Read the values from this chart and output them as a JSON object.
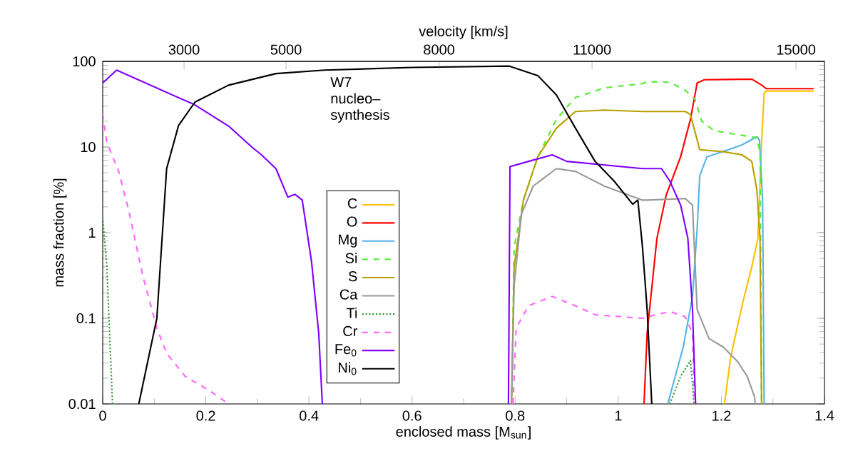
{
  "chart_data": {
    "type": "line",
    "xlabel": "enclosed mass [M$_{sun}$]",
    "ylabel": "mass fraction [%]",
    "x2label": "velocity [km/s]",
    "annotations": [
      "W7",
      "nucleo–",
      "synthesis"
    ],
    "xlim": [
      0,
      1.4
    ],
    "xticks": [
      0,
      0.2,
      0.4,
      0.6,
      0.8,
      1,
      1.2,
      1.4
    ],
    "x2lim": [
      1405,
      15558
    ],
    "x2ticks": [
      3000,
      5000,
      8000,
      11000,
      15000
    ],
    "ylim": [
      0.01,
      100
    ],
    "yticks": [
      0.01,
      0.1,
      1,
      10,
      100
    ],
    "log": "y",
    "grid": false,
    "legend": "center",
    "marker": "none",
    "line_style": "solid",
    "series": [
      {
        "name": "C",
        "color": "#ffc000",
        "x": [
          1.206,
          1.218,
          1.24,
          1.259,
          1.271,
          1.278,
          1.283,
          1.287,
          1.379
        ],
        "values": [
          0.01,
          0.035,
          0.14,
          0.4,
          0.86,
          11.3,
          43,
          45,
          45
        ]
      },
      {
        "name": "O",
        "color": "#ff0000",
        "x": [
          1.05,
          1.056,
          1.075,
          1.093,
          1.121,
          1.14,
          1.153,
          1.167,
          1.259,
          1.278,
          1.287,
          1.379
        ],
        "values": [
          0.01,
          0.067,
          0.86,
          2.75,
          7.7,
          21,
          56,
          61,
          62,
          53,
          48,
          48
        ]
      },
      {
        "name": "Mg",
        "color": "#56b4e9",
        "x": [
          1.096,
          1.126,
          1.144,
          1.153,
          1.158,
          1.172,
          1.204,
          1.24,
          1.269,
          1.274,
          1.28,
          1.283
        ],
        "values": [
          0.01,
          0.046,
          0.18,
          1.1,
          4.6,
          7.7,
          8.9,
          10.6,
          13.2,
          12,
          2.4,
          0.01
        ]
      },
      {
        "name": "Si",
        "color": "#55ee33",
        "line_style": "dashed",
        "x": [
          0.793,
          0.798,
          0.816,
          0.844,
          0.88,
          0.917,
          0.973,
          1.047,
          1.056,
          1.1,
          1.13,
          1.149,
          1.162,
          1.186,
          1.24,
          1.269,
          1.275,
          1.278
        ],
        "values": [
          0.01,
          0.67,
          2.4,
          7.7,
          21,
          38,
          49,
          55,
          58,
          57,
          46,
          36,
          20,
          15.5,
          13.7,
          12.8,
          8.7,
          0.01
        ]
      },
      {
        "name": "S",
        "color": "#b8a000",
        "x": [
          0.793,
          0.798,
          0.816,
          0.844,
          0.88,
          0.917,
          0.973,
          1.047,
          1.13,
          1.14,
          1.158,
          1.204,
          1.24,
          1.259,
          1.269,
          1.275,
          1.278
        ],
        "values": [
          0.01,
          0.4,
          2.4,
          7.7,
          16.6,
          26,
          27,
          26,
          26,
          24,
          9.3,
          8.8,
          8.1,
          6.8,
          3.1,
          0.86,
          0.01
        ]
      },
      {
        "name": "Ca",
        "color": "#999999",
        "x": [
          0.793,
          0.798,
          0.812,
          0.835,
          0.88,
          0.917,
          0.973,
          1.047,
          1.056,
          1.13,
          1.144,
          1.153,
          1.176,
          1.204,
          1.232,
          1.25,
          1.264,
          1.266
        ],
        "values": [
          0.01,
          0.24,
          1.64,
          3.5,
          5.6,
          5.2,
          3.5,
          2.4,
          2.4,
          2.5,
          2.1,
          0.127,
          0.058,
          0.046,
          0.031,
          0.021,
          0.0123,
          0.01
        ]
      },
      {
        "name": "Ti",
        "color": "#339933",
        "line_style": "dotted",
        "x": [
          0,
          0.008,
          0.019,
          0.6,
          1.1,
          1.121,
          1.14,
          1.144,
          1.147
        ],
        "values": [
          1.5,
          0.4,
          0.01,
          null,
          0.01,
          0.021,
          0.032,
          0.017,
          0.01
        ]
      },
      {
        "name": "Cr",
        "color": "#ff66ff",
        "line_style": "dashed",
        "x": [
          0,
          0.008,
          0.031,
          0.05,
          0.078,
          0.105,
          0.124,
          0.16,
          0.207,
          0.244,
          0.5,
          0.796,
          0.802,
          0.826,
          0.872,
          0.917,
          0.955,
          1.047,
          1.056,
          1.1,
          1.13,
          1.144,
          1.148
        ],
        "values": [
          24.4,
          11.3,
          5.2,
          1.87,
          0.31,
          0.077,
          0.039,
          0.021,
          0.0143,
          0.01,
          null,
          0.01,
          0.077,
          0.14,
          0.18,
          0.14,
          0.11,
          0.1,
          0.104,
          0.12,
          0.104,
          0.067,
          0.01
        ]
      },
      {
        "name": "Fe$_{0}$",
        "color": "#7f00ff",
        "x": [
          0,
          0.027,
          0.179,
          0.244,
          0.29,
          0.308,
          0.336,
          0.359,
          0.373,
          0.387,
          0.405,
          0.419,
          0.426,
          0.6,
          0.787,
          0.79,
          0.826,
          0.872,
          0.9,
          1.047,
          1.084,
          1.1,
          1.121,
          1.135,
          1.144,
          1.15
        ],
        "values": [
          56,
          79,
          31,
          17.6,
          9.9,
          8.1,
          5.6,
          2.6,
          2.8,
          2.4,
          0.46,
          0.067,
          0.01,
          null,
          0.01,
          5.9,
          6.8,
          8.1,
          6.8,
          5.6,
          5.6,
          4.0,
          2.1,
          0.86,
          0.127,
          0.01
        ]
      },
      {
        "name": "Ni$_{0}$",
        "color": "#000000",
        "x": [
          0.07,
          0.105,
          0.124,
          0.147,
          0.179,
          0.244,
          0.336,
          0.43,
          0.6,
          0.789,
          0.844,
          0.88,
          0.917,
          0.955,
          0.992,
          1.028,
          1.038,
          1.047,
          1.056,
          1.065
        ],
        "values": [
          0.01,
          0.1,
          5.6,
          17.8,
          33.5,
          52.7,
          72,
          79,
          85,
          88,
          68,
          40.6,
          16.6,
          6.8,
          4.0,
          2.15,
          2.4,
          0.68,
          0.127,
          0.01
        ]
      }
    ]
  }
}
